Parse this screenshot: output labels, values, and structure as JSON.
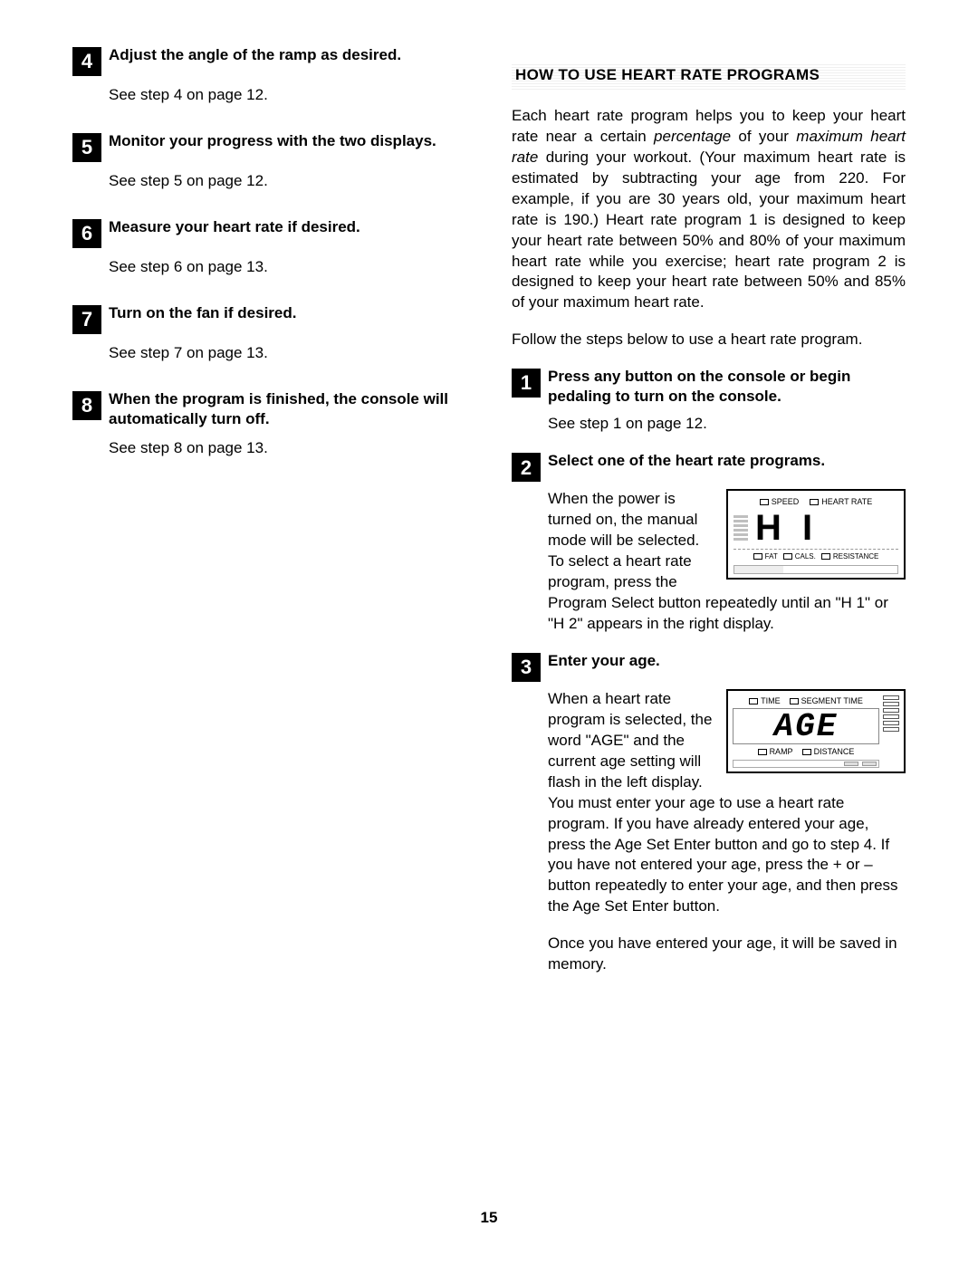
{
  "left": {
    "steps": [
      {
        "num": "4",
        "title": "Adjust the angle of the ramp as desired.",
        "body": "See step 4 on page 12."
      },
      {
        "num": "5",
        "title": "Monitor your progress with the two displays.",
        "body": "See step 5 on page 12."
      },
      {
        "num": "6",
        "title": "Measure your heart rate if desired.",
        "body": "See step 6 on page 13."
      },
      {
        "num": "7",
        "title": "Turn on the fan if desired.",
        "body": "See step 7 on page 13."
      },
      {
        "num": "8",
        "title": "When the program is finished, the console will automatically turn off.",
        "body": "See step 8 on page 13."
      }
    ]
  },
  "right": {
    "header": "HOW TO USE HEART RATE PROGRAMS",
    "intro_pre": "Each heart rate program helps you to keep your heart rate near a certain ",
    "intro_it1": "percentage",
    "intro_mid": " of your ",
    "intro_it2": "maximum heart rate",
    "intro_post": " during your workout. (Your maximum heart rate is estimated by subtracting your age from 220. For example, if you are 30 years old, your maximum heart rate is 190.) Heart rate program 1 is designed to keep your heart rate between 50% and 80% of your maximum heart rate while you exercise; heart rate program 2 is designed to keep your heart rate between 50% and 85% of your maximum heart rate.",
    "follow": "Follow the steps below to use a heart rate program.",
    "steps": {
      "1": {
        "num": "1",
        "title": "Press any button on the console or begin pedaling to turn on the console.",
        "body": "See step 1 on page 12."
      },
      "2": {
        "num": "2",
        "title": "Select one of the heart rate programs.",
        "body": "When the power is turned on, the manual mode will be selected. To select a heart rate program, press the Program Select button repeatedly until an \"H 1\" or \"H 2\" appears in the right display."
      },
      "3": {
        "num": "3",
        "title": "Enter your age.",
        "body": "When a heart rate program is selected, the word \"AGE\" and the current age setting will flash in the left display. You must enter your age to use a heart rate program. If you have already entered your age, press the Age Set Enter button and go to step 4. If you have not entered your age, press the + or – button repeatedly to enter your age, and then press the Age Set Enter button.",
        "body2": "Once you have entered your age, it will be saved in memory."
      }
    },
    "lcd1": {
      "top_left": "SPEED",
      "top_right": "HEART RATE",
      "big": "H  I",
      "bot_a": "FAT",
      "bot_b": "CALS.",
      "bot_c": "RESISTANCE"
    },
    "lcd2": {
      "top_left": "TIME",
      "top_right": "SEGMENT TIME",
      "big": "AGE",
      "bot_a": "RAMP",
      "bot_b": "DISTANCE"
    }
  },
  "page_number": "15",
  "colors": {
    "text": "#000000",
    "bg": "#ffffff",
    "numbox_bg": "#000000",
    "numbox_fg": "#ffffff"
  }
}
